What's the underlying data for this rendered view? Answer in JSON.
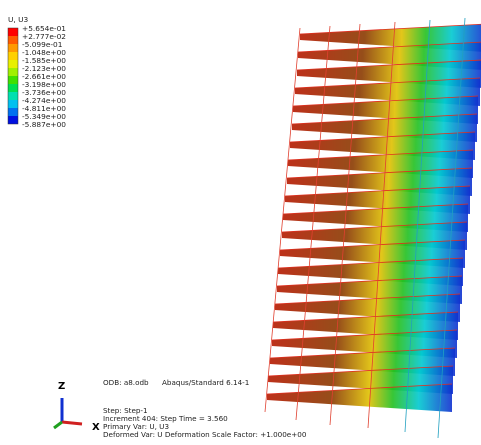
{
  "legend": {
    "title": "U, U3",
    "labels": [
      "+5.654e-01",
      "+2.777e-02",
      "-5.099e-01",
      "-1.048e+00",
      "-1.585e+00",
      "-2.123e+00",
      "-2.661e+00",
      "-3.198e+00",
      "-3.736e+00",
      "-4.274e+00",
      "-4.811e+00",
      "-5.349e+00",
      "-5.887e+00"
    ]
  },
  "info": {
    "odb": "ODB: a8.odb",
    "solver": "Abaqus/Standard 6.14-1",
    "step": "Step: Step-1",
    "increment": "Increment    404: Step Time =    3.560",
    "primary": "Primary Var: U, U3",
    "deformed": "Deformed Var: U   Deformation Scale Factor: +1.000e+00"
  },
  "triad": {
    "z": "Z",
    "x": "X"
  }
}
